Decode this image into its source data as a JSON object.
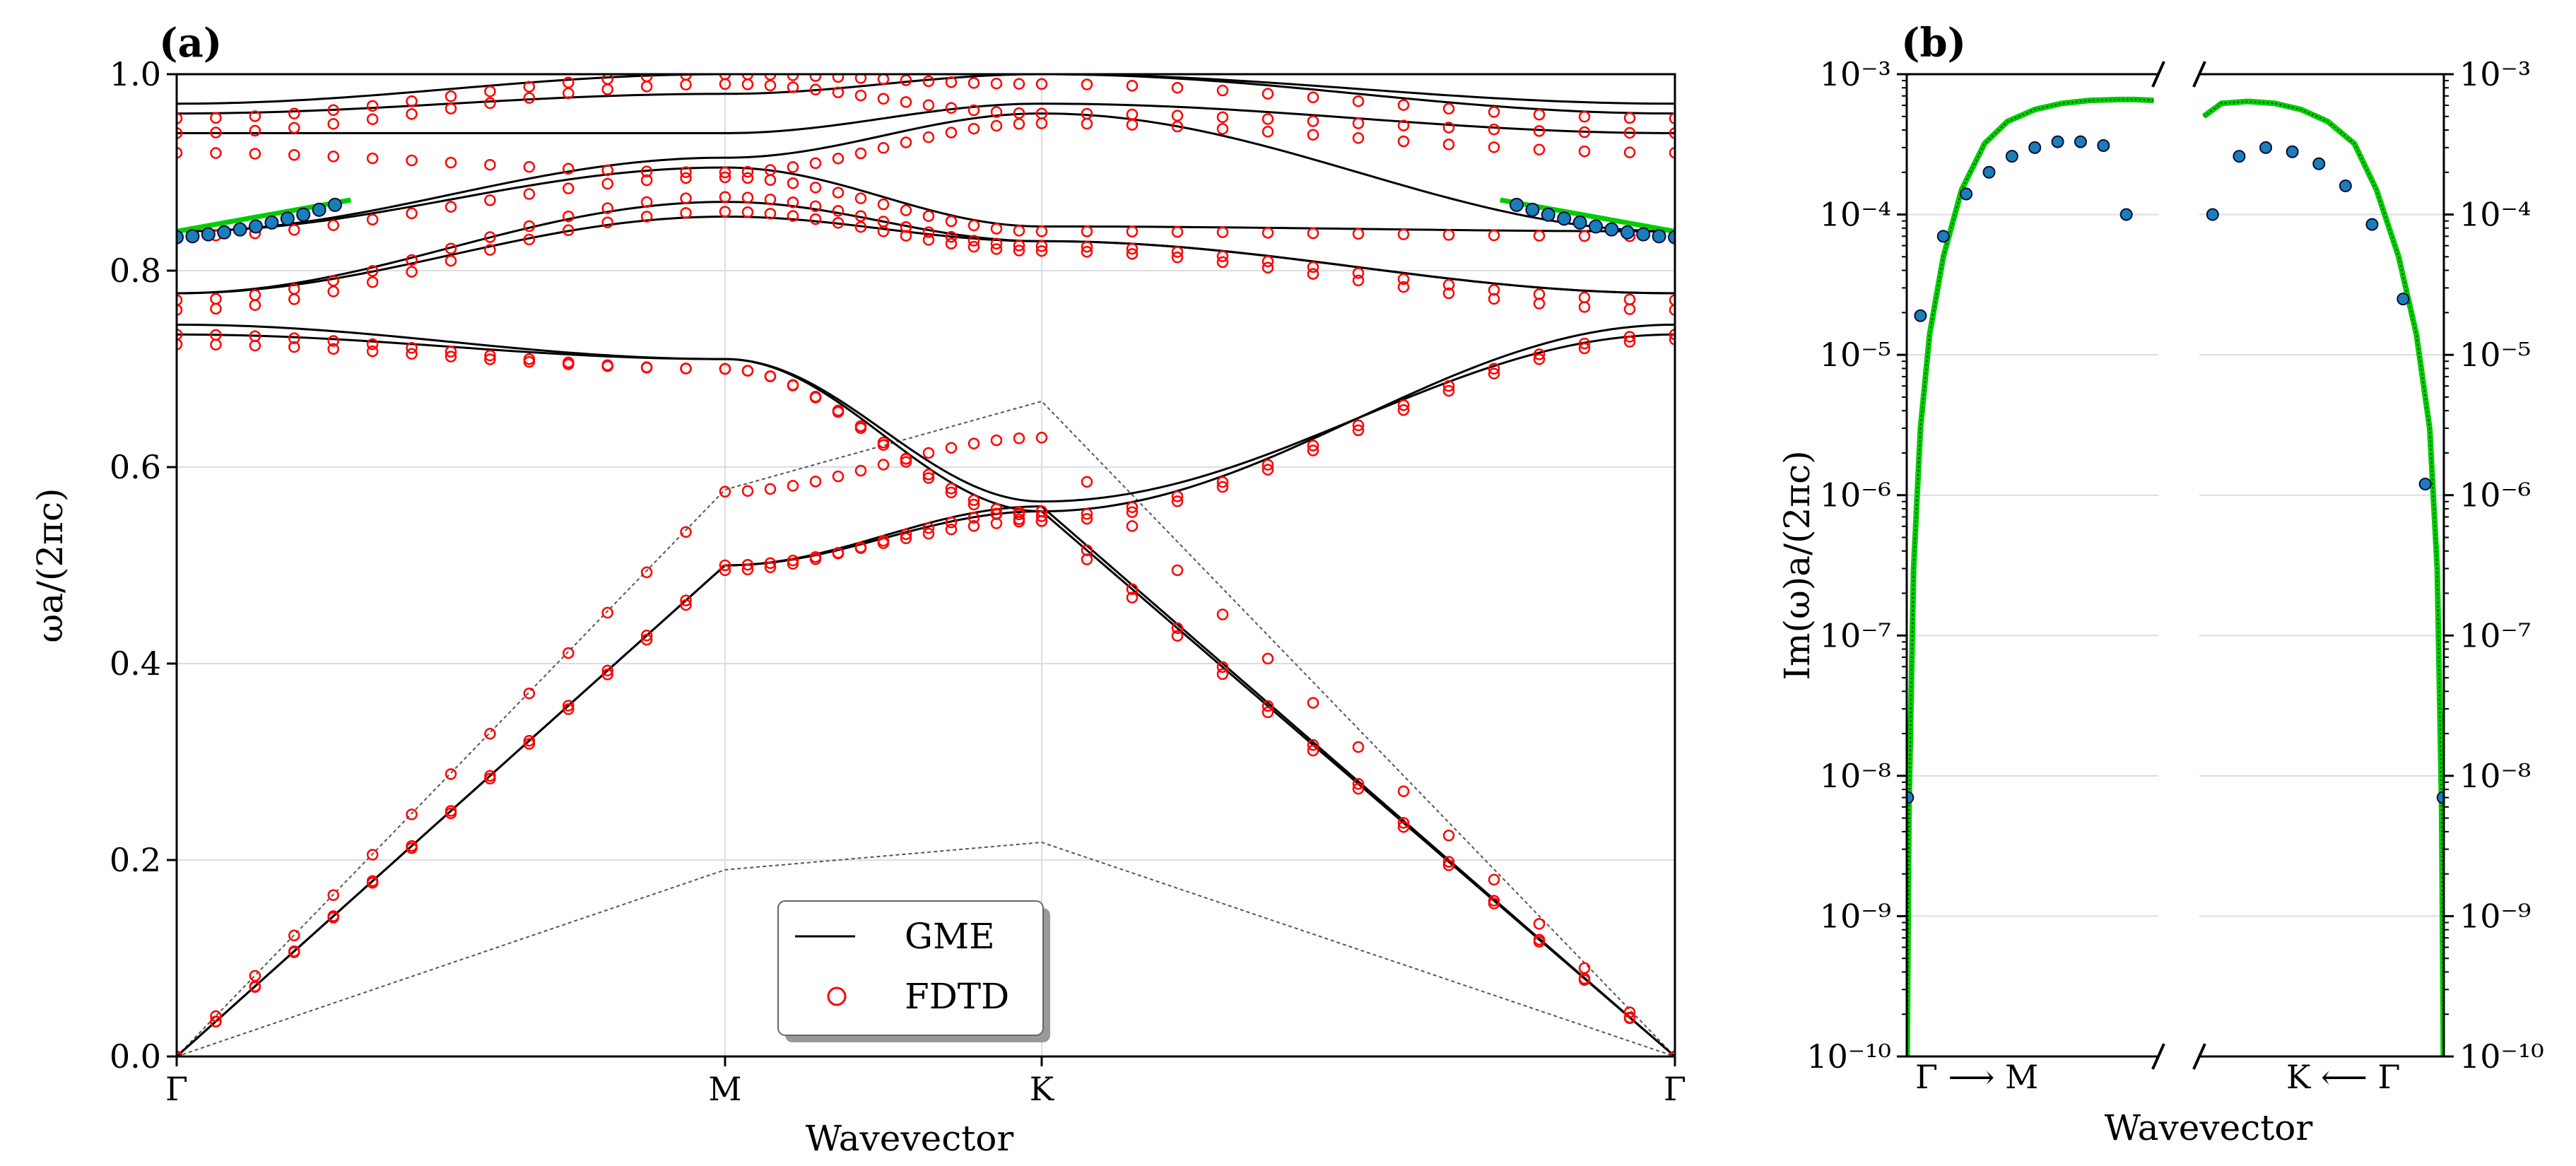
{
  "colors": {
    "gme": "#000000",
    "fdtd": "#ff0000",
    "light_line": "#555555",
    "lossy_band": "#00cc00",
    "lossy_points_fill": "#1a7fb8",
    "lossy_points_edge": "#0a0a3a",
    "grid": "#dddddd",
    "legend_border": "#666666"
  },
  "chart_data": [
    {
      "type": "line",
      "panel_label": "(a)",
      "xlabel": "Wavevector",
      "ylabel": "ωa/(2πc)",
      "xlim": [
        0,
        4.732
      ],
      "ylim": [
        0,
        1.0
      ],
      "xticks": [
        0,
        1.732,
        2.732,
        4.732
      ],
      "xtick_labels": [
        "Γ",
        "M",
        "K",
        "Γ"
      ],
      "yticks": [
        0.0,
        0.2,
        0.4,
        0.6,
        0.8,
        1.0
      ],
      "ytick_labels": [
        "0.0",
        "0.2",
        "0.4",
        "0.6",
        "0.8",
        "1.0"
      ],
      "grid": true,
      "legend": {
        "position": "bottom-center",
        "entries": [
          "GME",
          "FDTD"
        ]
      },
      "light_lines": [
        {
          "name": "light-line-lower",
          "x": [
            0,
            1.732,
            2.732,
            4.732
          ],
          "y": [
            0,
            0.19,
            0.218,
            0
          ]
        },
        {
          "name": "light-line-upper",
          "x": [
            0,
            1.732,
            2.732,
            4.732
          ],
          "y": [
            0,
            0.577,
            0.667,
            0
          ]
        }
      ],
      "series": [
        {
          "name": "GME",
          "style": "line",
          "x": [
            0,
            1.732,
            2.732,
            4.732
          ],
          "y": [
            0.0,
            0.5,
            0.56,
            0.0
          ]
        },
        {
          "name": "GME",
          "style": "line",
          "x": [
            0,
            1.732,
            2.732,
            4.732
          ],
          "y": [
            0.0,
            0.5,
            0.555,
            0.0
          ]
        },
        {
          "name": "GME",
          "style": "line",
          "x": [
            0,
            1.732,
            2.732,
            4.732
          ],
          "y": [
            0.735,
            0.71,
            0.555,
            0.745
          ]
        },
        {
          "name": "GME",
          "style": "line",
          "x": [
            0,
            1.732,
            2.732,
            4.732
          ],
          "y": [
            0.745,
            0.71,
            0.565,
            0.735
          ]
        },
        {
          "name": "GME",
          "style": "line",
          "x": [
            0,
            1.732,
            2.732,
            4.732
          ],
          "y": [
            0.777,
            0.855,
            0.83,
            0.777
          ]
        },
        {
          "name": "GME",
          "style": "line",
          "x": [
            0,
            1.732,
            2.732,
            4.732
          ],
          "y": [
            0.777,
            0.87,
            0.83,
            0.777
          ]
        },
        {
          "name": "GME",
          "style": "line",
          "x": [
            0,
            1.732,
            2.732,
            4.732
          ],
          "y": [
            0.84,
            0.905,
            0.845,
            0.84
          ]
        },
        {
          "name": "GME",
          "style": "line",
          "x": [
            0,
            1.732,
            2.732,
            4.732
          ],
          "y": [
            0.84,
            0.915,
            0.96,
            0.84
          ]
        },
        {
          "name": "GME",
          "style": "line",
          "x": [
            0,
            1.732,
            2.732,
            4.732
          ],
          "y": [
            0.94,
            0.94,
            0.97,
            0.94
          ]
        },
        {
          "name": "GME",
          "style": "line",
          "x": [
            0,
            1.732,
            2.732,
            4.732
          ],
          "y": [
            0.96,
            0.98,
            1.0,
            0.96
          ]
        },
        {
          "name": "GME",
          "style": "line",
          "x": [
            0,
            1.732,
            2.732,
            4.732
          ],
          "y": [
            0.97,
            1.0,
            1.0,
            0.97
          ]
        },
        {
          "name": "FDTD",
          "style": "scatter",
          "x": [
            0,
            1.732,
            2.732,
            4.732
          ],
          "y": [
            0.0,
            0.5,
            0.545,
            0.0
          ]
        },
        {
          "name": "FDTD",
          "style": "scatter",
          "x": [
            0,
            1.732,
            2.732,
            4.732
          ],
          "y": [
            0.0,
            0.495,
            0.555,
            0.0
          ]
        },
        {
          "name": "FDTD",
          "style": "scatter",
          "x": [
            0,
            1.732,
            2.732,
            4.732
          ],
          "y": [
            0.0,
            0.575,
            0.63,
            0.0
          ]
        },
        {
          "name": "FDTD",
          "style": "scatter",
          "x": [
            0,
            1.732,
            2.732,
            4.732
          ],
          "y": [
            0.725,
            0.7,
            0.545,
            0.73
          ]
        },
        {
          "name": "FDTD",
          "style": "scatter",
          "x": [
            0,
            1.732,
            2.732,
            4.732
          ],
          "y": [
            0.735,
            0.7,
            0.55,
            0.735
          ]
        },
        {
          "name": "FDTD",
          "style": "scatter",
          "x": [
            0,
            1.732,
            2.732,
            4.732
          ],
          "y": [
            0.76,
            0.86,
            0.82,
            0.76
          ]
        },
        {
          "name": "FDTD",
          "style": "scatter",
          "x": [
            0,
            1.732,
            2.732,
            4.732
          ],
          "y": [
            0.77,
            0.875,
            0.825,
            0.77
          ]
        },
        {
          "name": "FDTD",
          "style": "scatter",
          "x": [
            0,
            1.732,
            2.732,
            4.732
          ],
          "y": [
            0.835,
            0.895,
            0.84,
            0.835
          ]
        },
        {
          "name": "FDTD",
          "style": "scatter",
          "x": [
            0,
            1.732,
            2.732,
            4.732
          ],
          "y": [
            0.92,
            0.9,
            0.95,
            0.92
          ]
        },
        {
          "name": "FDTD",
          "style": "scatter",
          "x": [
            0,
            1.732,
            2.732,
            4.732
          ],
          "y": [
            0.94,
            0.99,
            0.96,
            0.94
          ]
        },
        {
          "name": "FDTD",
          "style": "scatter",
          "x": [
            0,
            1.732,
            2.732,
            4.732
          ],
          "y": [
            0.955,
            1.0,
            0.99,
            0.955
          ]
        }
      ],
      "highlighted_band": {
        "name": "lossy-band",
        "segments": [
          {
            "x": [
              0,
              0.55
            ],
            "y": [
              0.84,
              0.872
            ]
          },
          {
            "x": [
              4.18,
              4.732
            ],
            "y": [
              0.872,
              0.84
            ]
          }
        ],
        "points": [
          {
            "x": [
              0,
              0.05,
              0.1,
              0.15,
              0.2,
              0.25,
              0.3,
              0.35,
              0.4,
              0.45,
              0.5
            ],
            "y": [
              0.834,
              0.835,
              0.837,
              0.839,
              0.842,
              0.845,
              0.849,
              0.853,
              0.857,
              0.862,
              0.867
            ]
          },
          {
            "x": [
              4.232,
              4.282,
              4.332,
              4.382,
              4.432,
              4.482,
              4.532,
              4.582,
              4.632,
              4.682,
              4.732
            ],
            "y": [
              0.867,
              0.862,
              0.857,
              0.853,
              0.849,
              0.845,
              0.842,
              0.839,
              0.837,
              0.835,
              0.834
            ]
          }
        ]
      }
    },
    {
      "type": "line",
      "panel_label": "(b)",
      "xlabel": "Wavevector",
      "ylabel": "Im(ω)a/(2πc)",
      "yscale": "log",
      "ylim_exponent": [
        -10,
        -3
      ],
      "yticks": [
        -10,
        -9,
        -8,
        -7,
        -6,
        -5,
        -4,
        -3
      ],
      "ytick_labels": [
        "10⁻¹⁰",
        "10⁻⁹",
        "10⁻⁸",
        "10⁻⁷",
        "10⁻⁶",
        "10⁻⁵",
        "10⁻⁴",
        "10⁻³"
      ],
      "xlim_left": [
        0,
        0.55
      ],
      "xlim_right": [
        4.18,
        4.732
      ],
      "xtick_labels": [
        "Γ ⟶ M",
        "K ⟵ Γ"
      ],
      "broken_axis": true,
      "grid": true,
      "series": [
        {
          "name": "GME",
          "style": "line",
          "x": [
            0.001,
            0.005,
            0.015,
            0.03,
            0.05,
            0.08,
            0.12,
            0.17,
            0.22,
            0.28,
            0.34,
            0.4,
            0.46,
            0.5,
            0.54
          ],
          "y": [
            1e-10,
            6e-09,
            3e-07,
            3e-06,
            1.4e-05,
            5e-05,
            0.00015,
            0.00032,
            0.00046,
            0.00056,
            0.00062,
            0.00065,
            0.00066,
            0.00066,
            0.00065
          ]
        },
        {
          "name": "FDTD",
          "style": "scatter",
          "x": [
            0.002,
            0.03,
            0.08,
            0.13,
            0.18,
            0.23,
            0.28,
            0.33,
            0.38,
            0.43,
            0.48
          ],
          "y": [
            7e-09,
            1.9e-05,
            7e-05,
            0.00014,
            0.0002,
            0.00026,
            0.0003,
            0.00033,
            0.00033,
            0.00031,
            0.0001
          ]
        },
        {
          "name": "GME",
          "style": "line",
          "x": [
            4.19,
            4.23,
            4.29,
            4.35,
            4.41,
            4.47,
            4.53,
            4.58,
            4.63,
            4.67,
            4.7,
            4.717,
            4.727,
            4.731
          ],
          "y": [
            0.0005,
            0.00062,
            0.00064,
            0.00062,
            0.00056,
            0.00046,
            0.00032,
            0.00015,
            5e-05,
            1.4e-05,
            3e-06,
            3e-07,
            6e-09,
            1e-10
          ]
        },
        {
          "name": "FDTD",
          "style": "scatter",
          "x": [
            4.21,
            4.27,
            4.33,
            4.39,
            4.45,
            4.51,
            4.57,
            4.64,
            4.69,
            4.73
          ],
          "y": [
            0.0001,
            0.00026,
            0.0003,
            0.00028,
            0.00023,
            0.00016,
            8.5e-05,
            2.5e-05,
            1.2e-06,
            7e-09
          ]
        }
      ]
    }
  ]
}
